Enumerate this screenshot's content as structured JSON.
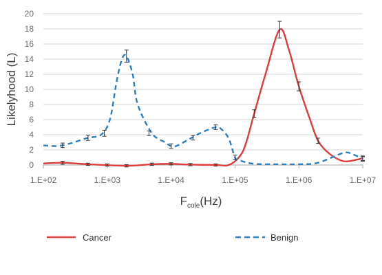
{
  "chart_data": {
    "type": "line",
    "xscale": "log",
    "xlim": [
      100,
      10000000
    ],
    "ylim": [
      0,
      20
    ],
    "grid": true,
    "legend_position": "bottom",
    "ylabel": "Likelyhood (L)",
    "xlabel": {
      "main": "F",
      "sub": "cole",
      "tail": "(Hz)"
    },
    "x_ticks": [
      {
        "value": 100,
        "label": "1.E+02"
      },
      {
        "value": 1000,
        "label": "1.E+03"
      },
      {
        "value": 10000,
        "label": "1.E+04"
      },
      {
        "value": 100000,
        "label": "1.E+05"
      },
      {
        "value": 1000000,
        "label": "1.E+06"
      },
      {
        "value": 10000000,
        "label": "1.E+07"
      }
    ],
    "y_ticks": [
      {
        "value": 0,
        "label": "0"
      },
      {
        "value": 2,
        "label": "2"
      },
      {
        "value": 4,
        "label": "4"
      },
      {
        "value": 6,
        "label": "6"
      },
      {
        "value": 8,
        "label": "8"
      },
      {
        "value": 10,
        "label": "10"
      },
      {
        "value": 12,
        "label": "12"
      },
      {
        "value": 14,
        "label": "14"
      },
      {
        "value": 16,
        "label": "16"
      },
      {
        "value": 18,
        "label": "18"
      },
      {
        "value": 20,
        "label": "20"
      }
    ],
    "series": [
      {
        "name": "Cancer",
        "color": "#e03a3a",
        "dash": "solid",
        "x": [
          100,
          200,
          500,
          2000,
          5000,
          10000,
          20000,
          50000,
          80000,
          120000,
          150000,
          200000,
          300000,
          500000,
          700000,
          1000000,
          1500000,
          2000000,
          3000000,
          5000000,
          8000000,
          10000000
        ],
        "y": [
          0.2,
          0.3,
          0.1,
          -0.1,
          0.1,
          0.15,
          0.05,
          0.0,
          0.0,
          1.2,
          3.0,
          6.8,
          12.0,
          17.9,
          15.2,
          10.4,
          6.0,
          3.2,
          1.5,
          0.5,
          0.7,
          0.9
        ],
        "errors": [
          {
            "x": 200,
            "y": 0.3,
            "err": 0.2
          },
          {
            "x": 500,
            "y": 0.1,
            "err": 0.15
          },
          {
            "x": 1000,
            "y": 0.0,
            "err": 0.15
          },
          {
            "x": 2000,
            "y": -0.1,
            "err": 0.15
          },
          {
            "x": 5000,
            "y": 0.1,
            "err": 0.15
          },
          {
            "x": 10000,
            "y": 0.15,
            "err": 0.15
          },
          {
            "x": 20000,
            "y": 0.05,
            "err": 0.15
          },
          {
            "x": 50000,
            "y": 0.0,
            "err": 0.15
          },
          {
            "x": 200000,
            "y": 6.8,
            "err": 0.5
          },
          {
            "x": 500000,
            "y": 17.9,
            "err": 1.1
          },
          {
            "x": 1000000,
            "y": 10.4,
            "err": 0.6
          },
          {
            "x": 2000000,
            "y": 3.2,
            "err": 0.35
          },
          {
            "x": 10000000,
            "y": 0.9,
            "err": 0.3
          }
        ]
      },
      {
        "name": "Benign",
        "color": "#2a7fc0",
        "dash": "dashed",
        "x": [
          100,
          150,
          200,
          300,
          500,
          800,
          1100,
          1400,
          1700,
          2000,
          2500,
          3000,
          5000,
          8000,
          10000,
          12000,
          20000,
          30000,
          50000,
          60000,
          80000,
          100000,
          120000,
          200000,
          500000,
          1000000,
          2000000,
          5000000,
          7000000,
          10000000
        ],
        "y": [
          2.6,
          2.5,
          2.6,
          3.0,
          3.6,
          4.0,
          6.0,
          11.0,
          14.0,
          14.4,
          12.0,
          8.0,
          4.2,
          3.0,
          2.5,
          2.5,
          3.5,
          4.3,
          5.0,
          4.8,
          3.5,
          1.0,
          0.6,
          0.15,
          0.1,
          0.1,
          0.3,
          1.6,
          1.4,
          0.8
        ],
        "errors": [
          {
            "x": 200,
            "y": 2.6,
            "err": 0.3
          },
          {
            "x": 500,
            "y": 3.6,
            "err": 0.35
          },
          {
            "x": 900,
            "y": 4.2,
            "err": 0.4
          },
          {
            "x": 2000,
            "y": 14.4,
            "err": 0.8
          },
          {
            "x": 4500,
            "y": 4.2,
            "err": 0.3
          },
          {
            "x": 10000,
            "y": 2.5,
            "err": 0.3
          },
          {
            "x": 22000,
            "y": 3.6,
            "err": 0.3
          },
          {
            "x": 50000,
            "y": 5.0,
            "err": 0.3
          },
          {
            "x": 100000,
            "y": 1.0,
            "err": 0.3
          },
          {
            "x": 10000000,
            "y": 0.8,
            "err": 0.3
          }
        ]
      }
    ]
  }
}
